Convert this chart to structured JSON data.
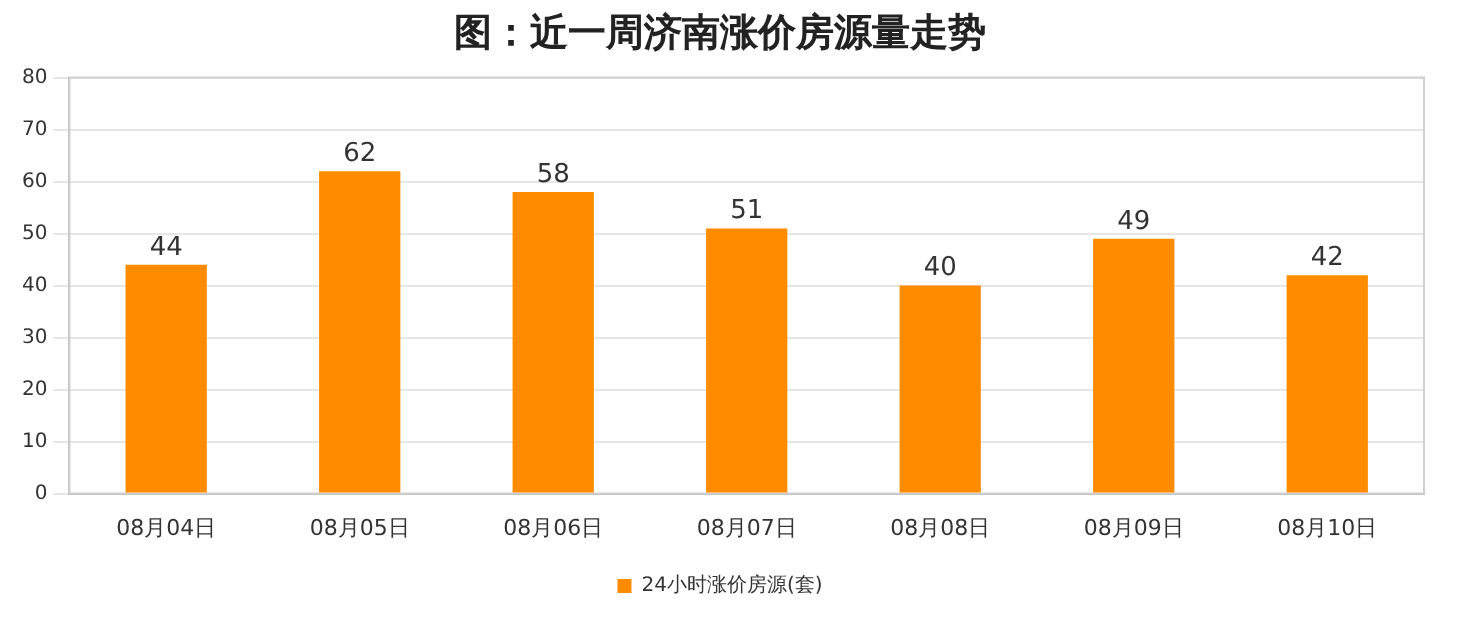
{
  "chart_data": {
    "type": "bar",
    "title": "图：近一周济南涨价房源量走势",
    "categories": [
      "08月04日",
      "08月05日",
      "08月06日",
      "08月07日",
      "08月08日",
      "08月09日",
      "08月10日"
    ],
    "series": [
      {
        "name": "24小时涨价房源(套)",
        "color": "#ff8c00",
        "values": [
          44,
          62,
          58,
          51,
          40,
          49,
          42
        ]
      }
    ],
    "ylim": [
      0,
      80
    ],
    "yticks": [
      0,
      10,
      20,
      30,
      40,
      50,
      60,
      70,
      80
    ],
    "grid": "y",
    "legend": "bottom",
    "data_labels": true
  }
}
